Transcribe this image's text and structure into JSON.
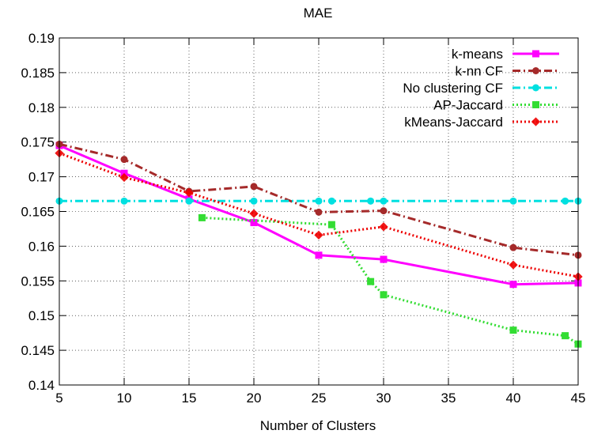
{
  "chart_data": {
    "type": "line",
    "title": "MAE",
    "xlabel": "Number of Clusters",
    "ylabel": "",
    "xlim": [
      5,
      45
    ],
    "ylim": [
      0.14,
      0.19
    ],
    "xticks": [
      "5",
      "10",
      "15",
      "20",
      "25",
      "30",
      "35",
      "40",
      "45"
    ],
    "yticks": [
      "0.14",
      "0.145",
      "0.15",
      "0.155",
      "0.16",
      "0.165",
      "0.17",
      "0.175",
      "0.18",
      "0.185",
      "0.19"
    ],
    "grid": true,
    "legend_position": "top-right",
    "series": [
      {
        "name": "k-means",
        "color": "#ff00ff",
        "dash": "solid",
        "marker": "square",
        "points": [
          [
            5,
            0.1745
          ],
          [
            10,
            0.1705
          ],
          [
            15,
            0.1668
          ],
          [
            20,
            0.1634
          ],
          [
            25,
            0.1587
          ],
          [
            30,
            0.1581
          ],
          [
            40,
            0.1545
          ],
          [
            45,
            0.1547
          ]
        ]
      },
      {
        "name": "k-nn CF",
        "color": "#a52a2a",
        "dash": "dashdot",
        "marker": "circle",
        "points": [
          [
            5,
            0.1747
          ],
          [
            10,
            0.1725
          ],
          [
            15,
            0.1679
          ],
          [
            20,
            0.1686
          ],
          [
            25,
            0.1649
          ],
          [
            30,
            0.1651
          ],
          [
            40,
            0.1598
          ],
          [
            45,
            0.1587
          ]
        ]
      },
      {
        "name": "No clustering CF",
        "color": "#00e0e0",
        "dash": "dashdot",
        "marker": "circle",
        "points": [
          [
            5,
            0.1665
          ],
          [
            10,
            0.1665
          ],
          [
            15,
            0.1665
          ],
          [
            20,
            0.1665
          ],
          [
            25,
            0.1665
          ],
          [
            26,
            0.1665
          ],
          [
            29,
            0.1665
          ],
          [
            30,
            0.1665
          ],
          [
            40,
            0.1665
          ],
          [
            44,
            0.1665
          ],
          [
            45,
            0.1665
          ]
        ]
      },
      {
        "name": "AP-Jaccard",
        "color": "#33dd33",
        "dash": "dotted",
        "marker": "square",
        "points": [
          [
            16,
            0.1641
          ],
          [
            26,
            0.1631
          ],
          [
            29,
            0.1549
          ],
          [
            30,
            0.153
          ],
          [
            40,
            0.1479
          ],
          [
            44,
            0.1471
          ],
          [
            45,
            0.1459
          ]
        ]
      },
      {
        "name": "kMeans-Jaccard",
        "color": "#ee0000",
        "dash": "dotted",
        "marker": "x",
        "points": [
          [
            5,
            0.1734
          ],
          [
            10,
            0.1699
          ],
          [
            15,
            0.1677
          ],
          [
            20,
            0.1647
          ],
          [
            25,
            0.1616
          ],
          [
            30,
            0.1628
          ],
          [
            40,
            0.1573
          ],
          [
            45,
            0.1556
          ]
        ]
      }
    ]
  }
}
